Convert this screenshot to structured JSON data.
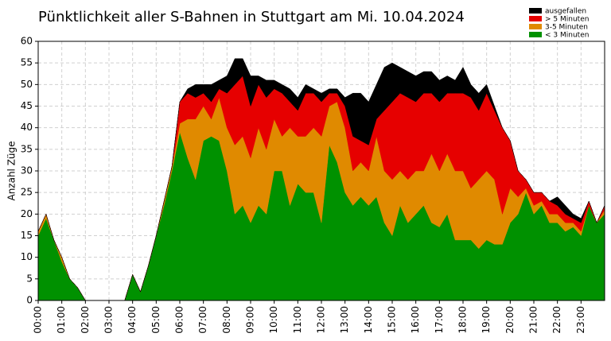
{
  "chart_data": {
    "type": "stacked_area",
    "title": "Pünktlichkeit aller S-Bahnen in Stuttgart am Mi. 10.04.2024",
    "y_label": "Anzahl Züge",
    "x": [
      0,
      20,
      40,
      60,
      80,
      100,
      120,
      140,
      160,
      180,
      200,
      220,
      240,
      260,
      280,
      300,
      320,
      340,
      360,
      380,
      400,
      420,
      440,
      460,
      480,
      500,
      520,
      540,
      560,
      580,
      600,
      620,
      640,
      660,
      680,
      700,
      720,
      740,
      760,
      780,
      800,
      820,
      840,
      860,
      880,
      900,
      920,
      940,
      960,
      980,
      1000,
      1020,
      1040,
      1060,
      1080,
      1100,
      1120,
      1140,
      1160,
      1180,
      1200,
      1220,
      1240,
      1260,
      1280,
      1300,
      1320,
      1340,
      1360,
      1380,
      1400,
      1420,
      1440
    ],
    "series": [
      {
        "name": "ausgefallen",
        "color": "#000000",
        "values": [
          0,
          0,
          0,
          0,
          0,
          0,
          0,
          0,
          0,
          0,
          0,
          0,
          0,
          0,
          0,
          0,
          0,
          0,
          0,
          1,
          3,
          2,
          4,
          2,
          4,
          6,
          4,
          7,
          2,
          4,
          2,
          2,
          3,
          3,
          2,
          1,
          2,
          1,
          1,
          2,
          10,
          11,
          10,
          8,
          10,
          9,
          6,
          6,
          6,
          5,
          5,
          5,
          4,
          3,
          6,
          3,
          4,
          2,
          1,
          0,
          0,
          0,
          0,
          0,
          0,
          0,
          2,
          2,
          1,
          1,
          0,
          0,
          0
        ]
      },
      {
        "name": "> 5 Minuten",
        "color": "#e60000",
        "values": [
          0,
          0,
          0,
          0,
          0,
          0,
          0,
          0,
          0,
          0,
          0,
          0,
          0,
          0,
          0,
          0,
          0,
          0,
          5,
          6,
          5,
          3,
          4,
          2,
          8,
          14,
          14,
          12,
          10,
          12,
          7,
          10,
          6,
          6,
          10,
          8,
          8,
          3,
          2,
          5,
          8,
          5,
          6,
          4,
          14,
          18,
          18,
          19,
          16,
          18,
          14,
          16,
          14,
          18,
          18,
          21,
          16,
          18,
          16,
          20,
          11,
          6,
          2,
          3,
          2,
          3,
          2,
          2,
          1,
          2,
          1,
          0,
          1
        ]
      },
      {
        "name": "3-5 Minuten",
        "color": "#e08a00",
        "values": [
          1,
          1,
          0,
          1,
          0,
          0,
          0,
          0,
          0,
          0,
          0,
          0,
          0,
          0,
          0,
          0,
          1,
          1,
          2,
          9,
          14,
          8,
          4,
          10,
          10,
          16,
          16,
          15,
          18,
          15,
          12,
          8,
          18,
          11,
          13,
          15,
          20,
          9,
          14,
          15,
          8,
          8,
          8,
          14,
          12,
          13,
          8,
          10,
          10,
          8,
          16,
          13,
          14,
          16,
          16,
          12,
          16,
          16,
          15,
          7,
          8,
          4,
          1,
          2,
          1,
          2,
          2,
          2,
          1,
          1,
          0,
          0,
          1
        ]
      },
      {
        "name": "< 3 Minuten",
        "color": "#009100",
        "values": [
          15,
          19,
          14,
          9,
          5,
          3,
          0,
          0,
          0,
          0,
          0,
          0,
          6,
          2,
          8,
          15,
          22,
          30,
          39,
          33,
          28,
          37,
          38,
          37,
          30,
          20,
          22,
          18,
          22,
          20,
          30,
          30,
          22,
          27,
          25,
          25,
          18,
          36,
          32,
          25,
          22,
          24,
          22,
          24,
          18,
          15,
          22,
          18,
          20,
          22,
          18,
          17,
          20,
          14,
          14,
          14,
          12,
          14,
          13,
          13,
          18,
          20,
          25,
          20,
          22,
          18,
          18,
          16,
          17,
          15,
          22,
          18,
          20
        ]
      }
    ],
    "xlim": [
      0,
      1440
    ],
    "xticks": [
      {
        "value": 0,
        "label": "00:00"
      },
      {
        "value": 60,
        "label": "01:00"
      },
      {
        "value": 120,
        "label": "02:00"
      },
      {
        "value": 180,
        "label": "03:00"
      },
      {
        "value": 240,
        "label": "04:00"
      },
      {
        "value": 300,
        "label": "05:00"
      },
      {
        "value": 360,
        "label": "06:00"
      },
      {
        "value": 420,
        "label": "07:00"
      },
      {
        "value": 480,
        "label": "08:00"
      },
      {
        "value": 540,
        "label": "09:00"
      },
      {
        "value": 600,
        "label": "10:00"
      },
      {
        "value": 660,
        "label": "11:00"
      },
      {
        "value": 720,
        "label": "12:00"
      },
      {
        "value": 780,
        "label": "13:00"
      },
      {
        "value": 840,
        "label": "14:00"
      },
      {
        "value": 900,
        "label": "15:00"
      },
      {
        "value": 960,
        "label": "16:00"
      },
      {
        "value": 1020,
        "label": "17:00"
      },
      {
        "value": 1080,
        "label": "18:00"
      },
      {
        "value": 1140,
        "label": "19:00"
      },
      {
        "value": 1200,
        "label": "20:00"
      },
      {
        "value": 1260,
        "label": "21:00"
      },
      {
        "value": 1320,
        "label": "22:00"
      },
      {
        "value": 1380,
        "label": "23:00"
      }
    ],
    "ylim": [
      0,
      60
    ],
    "yticks": [
      0,
      5,
      10,
      15,
      20,
      25,
      30,
      35,
      40,
      45,
      50,
      55,
      60
    ],
    "grid": true,
    "legend": "upper right"
  }
}
